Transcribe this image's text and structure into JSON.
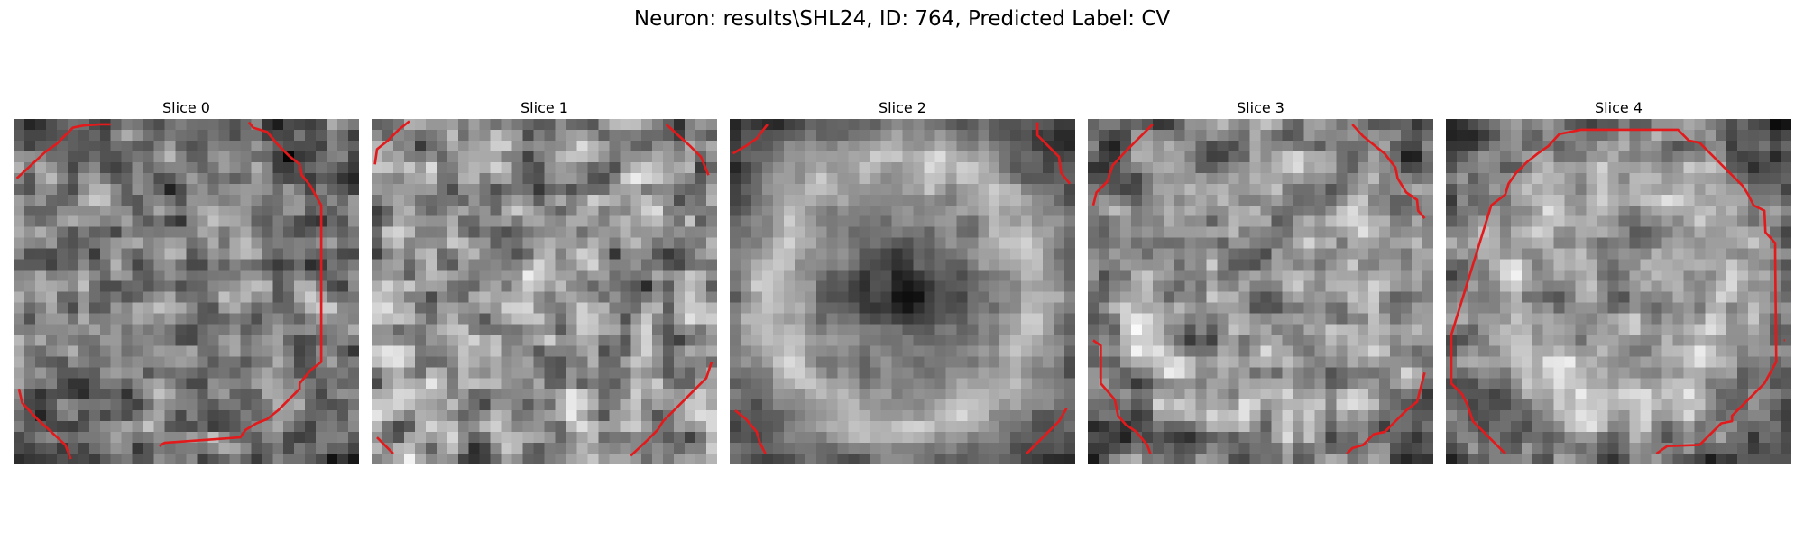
{
  "figure": {
    "title": "Neuron: results\\SHL24, ID: 764, Predicted Label: CV"
  },
  "colors": {
    "contour": "#e31a1c",
    "colormap": "gray"
  },
  "panels": [
    {
      "title": "Slice 0",
      "variant": 0
    },
    {
      "title": "Slice 1",
      "variant": 1
    },
    {
      "title": "Slice 2",
      "variant": 2
    },
    {
      "title": "Slice 3",
      "variant": 3
    },
    {
      "title": "Slice 4",
      "variant": 4
    }
  ]
}
